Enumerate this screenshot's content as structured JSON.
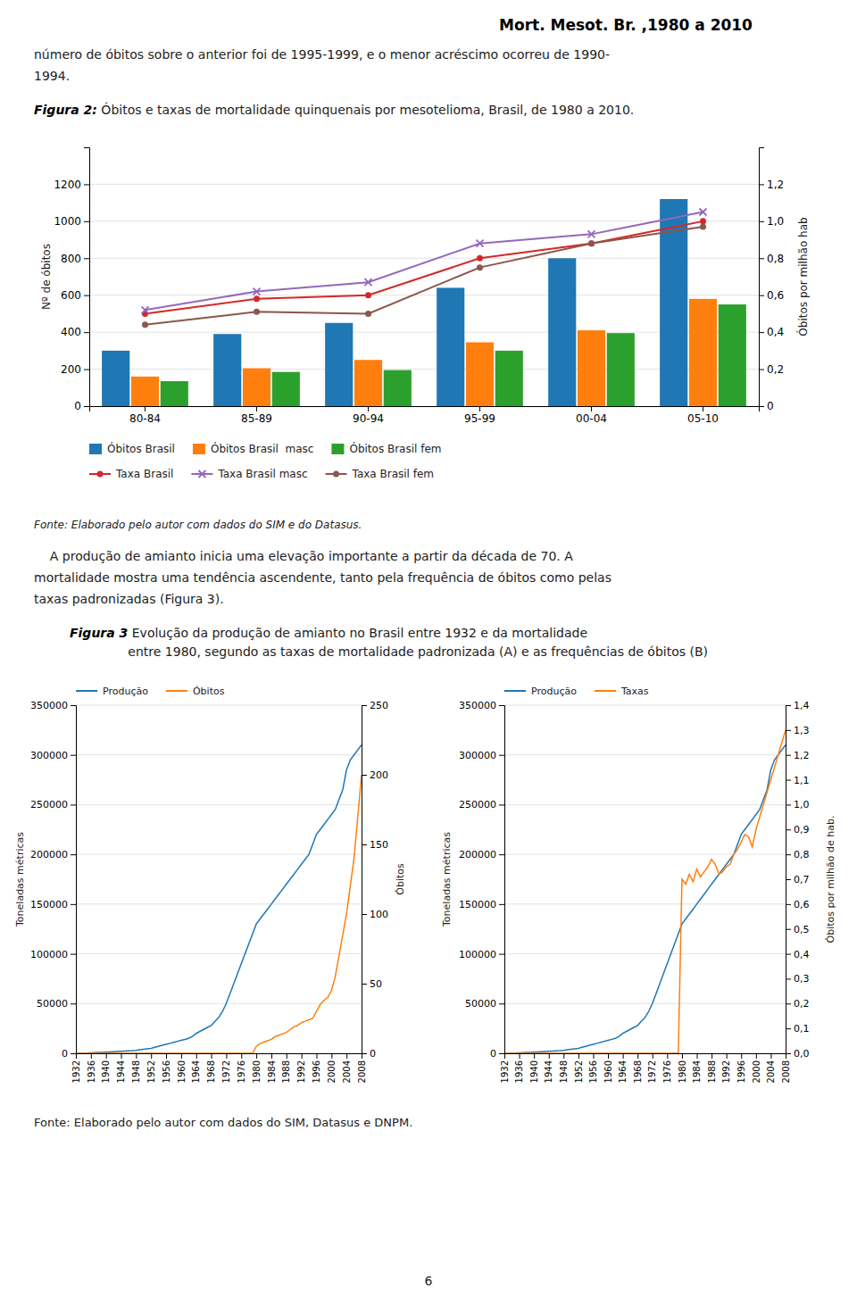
{
  "page_title": "Mort. Mesot. Br. ,1980 a 2010",
  "intro_text": "número de óbitos sobre o anterior foi de 1995-1999, e o menor acréscimo ocorreu de 1990-\n1994.",
  "figura2_caption_bold": "Figura 2:",
  "figura2_caption_rest": " Óbitos e taxas de mortalidade quinquenais por mesotelioma, Brasil, de 1980 a 2010.",
  "fonte_fig2": "Fonte: Elaborado pelo autor com dados do SIM e do Datasus.",
  "mid_text": "    A produção de amianto inicia uma elevação importante a partir da década de 70. A\nmortalidade mostra uma tendência ascendente, tanto pela frequência de óbitos como pelas\ntaxas padronizadas (Figura 3).",
  "figura3_caption_bold": "Figura 3",
  "figura3_caption_rest": " Evolução da produção de amianto no Brasil entre 1932 e da mortalidade\nentre 1980, segundo as taxas de mortalidade padronizada (A) e as frequências de óbitos (B)",
  "fonte_fig3": "Fonte: Elaborado pelo autor com dados do SIM, Datasus e DNPM.",
  "page_number": "6",
  "chart_data": [
    {
      "type": "bar",
      "categories": [
        "80-84",
        "85-89",
        "90-94",
        "95-99",
        "00-04",
        "05-10"
      ],
      "ylabel": "Nº de óbitos",
      "y2label": "Óbitos por milhão hab",
      "ylim": [
        0,
        1400
      ],
      "yticks": [
        0,
        200,
        400,
        600,
        800,
        1000,
        1200
      ],
      "y2lim": [
        0,
        1.4
      ],
      "y2ticks": [
        0,
        {
          "value": 0.2,
          "label": "0,2"
        },
        {
          "value": 0.4,
          "label": "0,4"
        },
        {
          "value": 0.6,
          "label": "0,6"
        },
        {
          "value": 0.8,
          "label": "0,8"
        },
        {
          "value": 1.0,
          "label": "1,0"
        },
        {
          "value": 1.2,
          "label": "1,2"
        }
      ],
      "grid": true,
      "legend": "bottom",
      "series": [
        {
          "name": "Óbitos Brasil",
          "type": "bar",
          "values": [
            300,
            390,
            450,
            640,
            800,
            1120
          ]
        },
        {
          "name": "Óbitos Brasil  masc",
          "type": "bar",
          "values": [
            160,
            205,
            250,
            345,
            410,
            580
          ]
        },
        {
          "name": "Óbitos Brasil fem",
          "type": "bar",
          "values": [
            135,
            185,
            195,
            300,
            395,
            550
          ]
        },
        {
          "name": "Taxa Brasil",
          "type": "line",
          "axis": "y2",
          "marker": "circle",
          "values": [
            0.5,
            0.58,
            0.6,
            0.8,
            0.88,
            1.0
          ]
        },
        {
          "name": "Taxa Brasil masc",
          "type": "line",
          "axis": "y2",
          "marker": "x",
          "values": [
            0.52,
            0.62,
            0.67,
            0.88,
            0.93,
            1.05
          ]
        },
        {
          "name": "Taxa Brasil fem",
          "type": "line",
          "axis": "y2",
          "marker": "circle",
          "values": [
            0.44,
            0.51,
            0.5,
            0.75,
            0.88,
            0.97
          ]
        }
      ]
    },
    {
      "type": "line",
      "x": [
        1932,
        1933,
        1934,
        1935,
        1936,
        1937,
        1938,
        1939,
        1940,
        1941,
        1942,
        1943,
        1944,
        1945,
        1946,
        1947,
        1948,
        1949,
        1950,
        1951,
        1952,
        1953,
        1954,
        1955,
        1956,
        1957,
        1958,
        1959,
        1960,
        1961,
        1962,
        1963,
        1964,
        1965,
        1966,
        1967,
        1968,
        1969,
        1970,
        1971,
        1972,
        1973,
        1974,
        1975,
        1976,
        1977,
        1978,
        1979,
        1980,
        1981,
        1982,
        1983,
        1984,
        1985,
        1986,
        1987,
        1988,
        1989,
        1990,
        1991,
        1992,
        1993,
        1994,
        1995,
        1996,
        1997,
        1998,
        1999,
        2000,
        2001,
        2002,
        2003,
        2004,
        2005,
        2006,
        2007,
        2008
      ],
      "xlim": [
        1932,
        2008
      ],
      "xticks": [
        1932,
        1936,
        1940,
        1944,
        1948,
        1952,
        1956,
        1960,
        1964,
        1968,
        1972,
        1976,
        1980,
        1984,
        1988,
        1992,
        1996,
        2000,
        2004,
        2008
      ],
      "ylabel": "Toneladas métricas",
      "y2label": "Óbitos",
      "ylim": [
        0,
        350000
      ],
      "yticks": [
        0,
        50000,
        100000,
        150000,
        200000,
        250000,
        300000,
        350000
      ],
      "y2lim": [
        0,
        250
      ],
      "y2ticks": [
        0,
        50,
        100,
        150,
        200,
        250
      ],
      "grid": true,
      "legend": "upper left",
      "series": [
        {
          "name": "Produção",
          "values": [
            0,
            0,
            0,
            200,
            400,
            600,
            800,
            1000,
            1200,
            1400,
            1600,
            1800,
            2000,
            2200,
            2400,
            2600,
            3000,
            3500,
            4000,
            4500,
            5000,
            6000,
            7000,
            8000,
            9000,
            10000,
            11000,
            12000,
            13000,
            14000,
            15000,
            17000,
            20000,
            22000,
            24000,
            26000,
            28000,
            32000,
            36000,
            42000,
            50000,
            60000,
            70000,
            80000,
            90000,
            100000,
            110000,
            120000,
            130000,
            135000,
            140000,
            145000,
            150000,
            155000,
            160000,
            165000,
            170000,
            175000,
            180000,
            185000,
            190000,
            195000,
            200000,
            210000,
            220000,
            225000,
            230000,
            235000,
            240000,
            245000,
            255000,
            265000,
            285000,
            295000,
            300000,
            305000,
            310000
          ]
        },
        {
          "name": "Óbitos",
          "axis": "y2",
          "values": [
            0,
            0,
            0,
            0,
            0,
            0,
            0,
            0,
            0,
            0,
            0,
            0,
            0,
            0,
            0,
            0,
            0,
            0,
            0,
            0,
            0,
            0,
            0,
            0,
            0,
            0,
            0,
            0,
            0,
            0,
            0,
            0,
            0,
            0,
            0,
            0,
            0,
            0,
            0,
            0,
            0,
            0,
            0,
            0,
            0,
            0,
            0,
            0,
            5,
            7,
            8,
            9,
            10,
            12,
            13,
            14,
            15,
            17,
            19,
            20,
            22,
            23,
            24,
            25,
            30,
            35,
            38,
            40,
            45,
            55,
            70,
            85,
            100,
            120,
            140,
            170,
            200
          ]
        }
      ]
    },
    {
      "type": "line",
      "x": [
        1932,
        1933,
        1934,
        1935,
        1936,
        1937,
        1938,
        1939,
        1940,
        1941,
        1942,
        1943,
        1944,
        1945,
        1946,
        1947,
        1948,
        1949,
        1950,
        1951,
        1952,
        1953,
        1954,
        1955,
        1956,
        1957,
        1958,
        1959,
        1960,
        1961,
        1962,
        1963,
        1964,
        1965,
        1966,
        1967,
        1968,
        1969,
        1970,
        1971,
        1972,
        1973,
        1974,
        1975,
        1976,
        1977,
        1978,
        1979,
        1980,
        1981,
        1982,
        1983,
        1984,
        1985,
        1986,
        1987,
        1988,
        1989,
        1990,
        1991,
        1992,
        1993,
        1994,
        1995,
        1996,
        1997,
        1998,
        1999,
        2000,
        2001,
        2002,
        2003,
        2004,
        2005,
        2006,
        2007,
        2008
      ],
      "xlim": [
        1932,
        2008
      ],
      "xticks": [
        1932,
        1936,
        1940,
        1944,
        1948,
        1952,
        1956,
        1960,
        1964,
        1968,
        1972,
        1976,
        1980,
        1984,
        1988,
        1992,
        1996,
        2000,
        2004,
        2008
      ],
      "ylabel": "Toneladas métricas",
      "y2label": "Óbitos por milhão de hab.",
      "ylim": [
        0,
        350000
      ],
      "yticks": [
        0,
        50000,
        100000,
        150000,
        200000,
        250000,
        300000,
        350000
      ],
      "y2lim": [
        0,
        1.4
      ],
      "y2ticks": [
        {
          "value": 0,
          "label": "0,0"
        },
        {
          "value": 0.1,
          "label": "0,1"
        },
        {
          "value": 0.2,
          "label": "0,2"
        },
        {
          "value": 0.3,
          "label": "0,3"
        },
        {
          "value": 0.4,
          "label": "0,4"
        },
        {
          "value": 0.5,
          "label": "0,5"
        },
        {
          "value": 0.6,
          "label": "0,6"
        },
        {
          "value": 0.7,
          "label": "0,7"
        },
        {
          "value": 0.8,
          "label": "0,8"
        },
        {
          "value": 0.9,
          "label": "0,9"
        },
        {
          "value": 1.0,
          "label": "1,0"
        },
        {
          "value": 1.1,
          "label": "1,1"
        },
        {
          "value": 1.2,
          "label": "1,2"
        },
        {
          "value": 1.3,
          "label": "1,3"
        },
        {
          "value": 1.4,
          "label": "1,4"
        }
      ],
      "grid": true,
      "legend": "upper left",
      "series": [
        {
          "name": "Produção",
          "values": [
            0,
            0,
            0,
            200,
            400,
            600,
            800,
            1000,
            1200,
            1400,
            1600,
            1800,
            2000,
            2200,
            2400,
            2600,
            3000,
            3500,
            4000,
            4500,
            5000,
            6000,
            7000,
            8000,
            9000,
            10000,
            11000,
            12000,
            13000,
            14000,
            15000,
            17000,
            20000,
            22000,
            24000,
            26000,
            28000,
            32000,
            36000,
            42000,
            50000,
            60000,
            70000,
            80000,
            90000,
            100000,
            110000,
            120000,
            130000,
            135000,
            140000,
            145000,
            150000,
            155000,
            160000,
            165000,
            170000,
            175000,
            180000,
            185000,
            190000,
            195000,
            200000,
            210000,
            220000,
            225000,
            230000,
            235000,
            240000,
            245000,
            255000,
            265000,
            285000,
            295000,
            300000,
            305000,
            310000
          ]
        },
        {
          "name": "Taxas",
          "axis": "y2",
          "values": [
            0,
            0,
            0,
            0,
            0,
            0,
            0,
            0,
            0,
            0,
            0,
            0,
            0,
            0,
            0,
            0,
            0,
            0,
            0,
            0,
            0,
            0,
            0,
            0,
            0,
            0,
            0,
            0,
            0,
            0,
            0,
            0,
            0,
            0,
            0,
            0,
            0,
            0,
            0,
            0,
            0,
            0,
            0,
            0,
            0,
            0,
            0,
            0,
            0.7,
            0.68,
            0.72,
            0.69,
            0.74,
            0.71,
            0.73,
            0.75,
            0.78,
            0.76,
            0.72,
            0.73,
            0.75,
            0.76,
            0.8,
            0.82,
            0.85,
            0.88,
            0.87,
            0.83,
            0.9,
            0.95,
            1.0,
            1.05,
            1.1,
            1.15,
            1.2,
            1.25,
            1.3
          ]
        }
      ]
    }
  ]
}
